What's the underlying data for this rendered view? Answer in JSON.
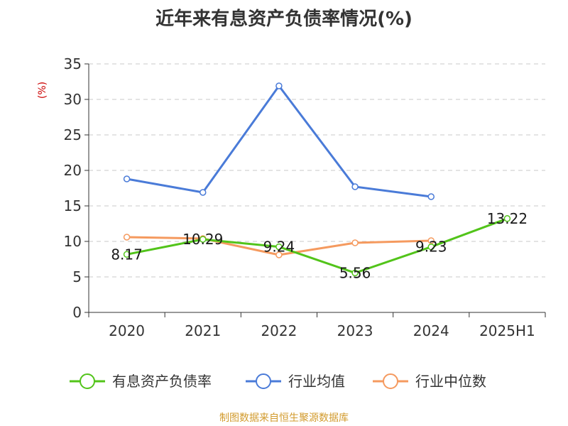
{
  "title": "近年来有息资产负债率情况(%)",
  "footer": "制图数据来自恒生聚源数据库",
  "chart_data": {
    "type": "line",
    "title": "近年来有息资产负债率情况(%)",
    "ylabel": "(%)",
    "categories": [
      "2020",
      "2021",
      "2022",
      "2023",
      "2024",
      "2025H1"
    ],
    "ylim": [
      0,
      35
    ],
    "yticks": [
      0,
      5,
      10,
      15,
      20,
      25,
      30,
      35
    ],
    "grid": true,
    "legend_position": "bottom",
    "series": [
      {
        "name": "有息资产负债率",
        "color": "#52c41a",
        "values": [
          8.17,
          10.29,
          9.24,
          5.56,
          9.23,
          13.22
        ],
        "labels": [
          "8.17",
          "10.29",
          "9.24",
          "5.56",
          "9.23",
          "13.22"
        ]
      },
      {
        "name": "行业均值",
        "color": "#4a7bd8",
        "values": [
          18.8,
          16.9,
          31.9,
          17.7,
          16.3,
          null
        ]
      },
      {
        "name": "行业中位数",
        "color": "#f59a5f",
        "values": [
          10.6,
          10.4,
          8.1,
          9.8,
          10.1,
          null
        ]
      }
    ]
  }
}
